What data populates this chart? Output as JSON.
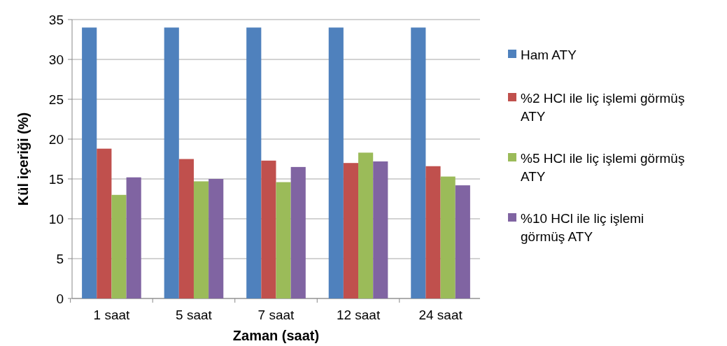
{
  "chart_data": {
    "type": "bar",
    "xlabel": "Zaman (saat)",
    "ylabel": "Kül içeriği (%)",
    "categories": [
      "1 saat",
      "5 saat",
      "7 saat",
      "12 saat",
      "24 saat"
    ],
    "series": [
      {
        "name": "Ham ATY",
        "color": "#4f81bd",
        "values": [
          34,
          34,
          34,
          34,
          34
        ]
      },
      {
        "name": "%2 HCl ile liç işlemi görmüş ATY",
        "color": "#c0504d",
        "values": [
          18.8,
          17.5,
          17.3,
          17,
          16.6
        ]
      },
      {
        "name": "%5 HCl ile liç işlemi görmüş ATY",
        "color": "#9bbb59",
        "values": [
          13,
          14.7,
          14.6,
          18.3,
          15.3
        ]
      },
      {
        "name": "%10 HCl ile liç işlemi görmüş ATY",
        "color": "#8064a2",
        "values": [
          15.2,
          15,
          16.5,
          17.2,
          14.2
        ]
      }
    ],
    "ylim": [
      0,
      35
    ],
    "yticks": [
      0,
      5,
      10,
      15,
      20,
      25,
      30,
      35
    ],
    "grid": "y",
    "legend": "right"
  }
}
